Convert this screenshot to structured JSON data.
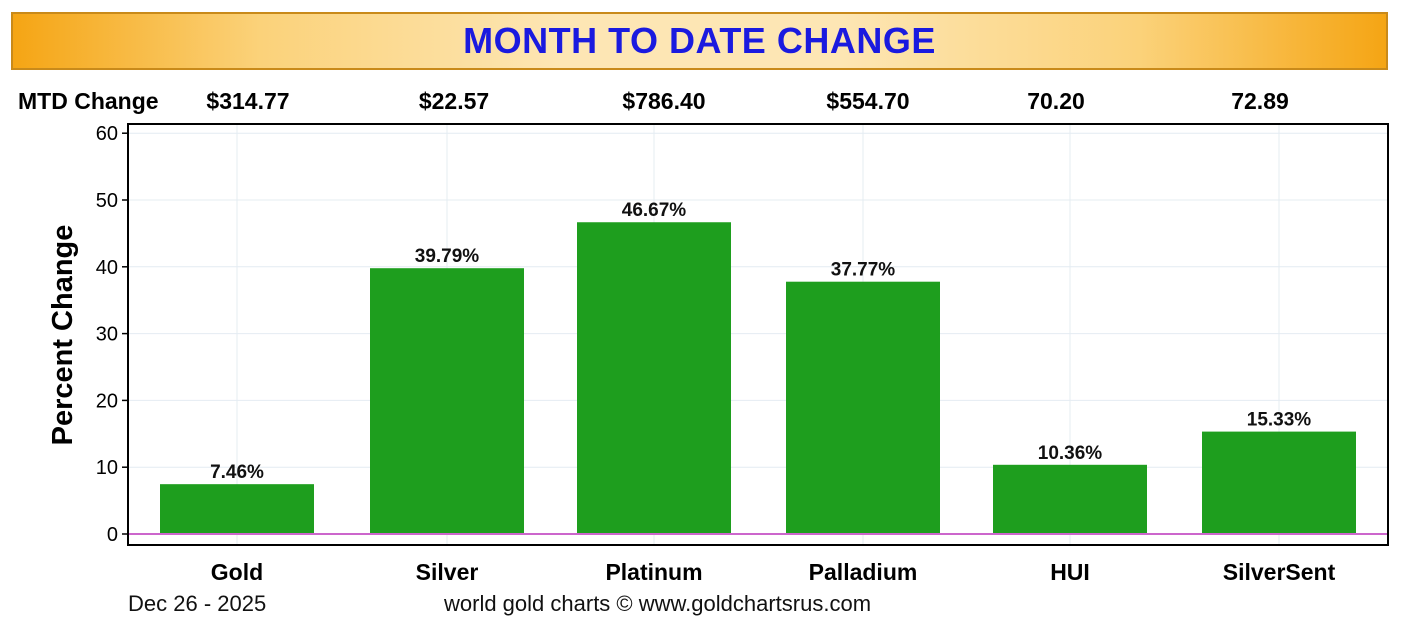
{
  "header": {
    "title": "MONTH TO DATE CHANGE"
  },
  "mtd": {
    "label": "MTD Change",
    "values": [
      "$314.77",
      "$22.57",
      "$786.40",
      "$554.70",
      "70.20",
      "72.89"
    ]
  },
  "chart_data": {
    "type": "bar",
    "title": "",
    "xlabel": "",
    "ylabel": "Percent Change",
    "ylim": [
      0,
      62
    ],
    "yticks": [
      0,
      10,
      20,
      30,
      40,
      50,
      60
    ],
    "categories": [
      "Gold",
      "Silver",
      "Platinum",
      "Palladium",
      "HUI",
      "SilverSent"
    ],
    "values": [
      7.46,
      39.79,
      46.67,
      37.77,
      10.36,
      15.33
    ],
    "labels": [
      "7.46%",
      "39.79%",
      "46.67%",
      "37.77%",
      "10.36%",
      "15.33%"
    ],
    "bar_color": "#1e9e1e",
    "zero_line_color": "#cc66cc",
    "grid": true,
    "legend": "none"
  },
  "footer": {
    "date": "Dec 26 - 2025",
    "credit": "world gold charts © www.goldchartsrus.com"
  }
}
